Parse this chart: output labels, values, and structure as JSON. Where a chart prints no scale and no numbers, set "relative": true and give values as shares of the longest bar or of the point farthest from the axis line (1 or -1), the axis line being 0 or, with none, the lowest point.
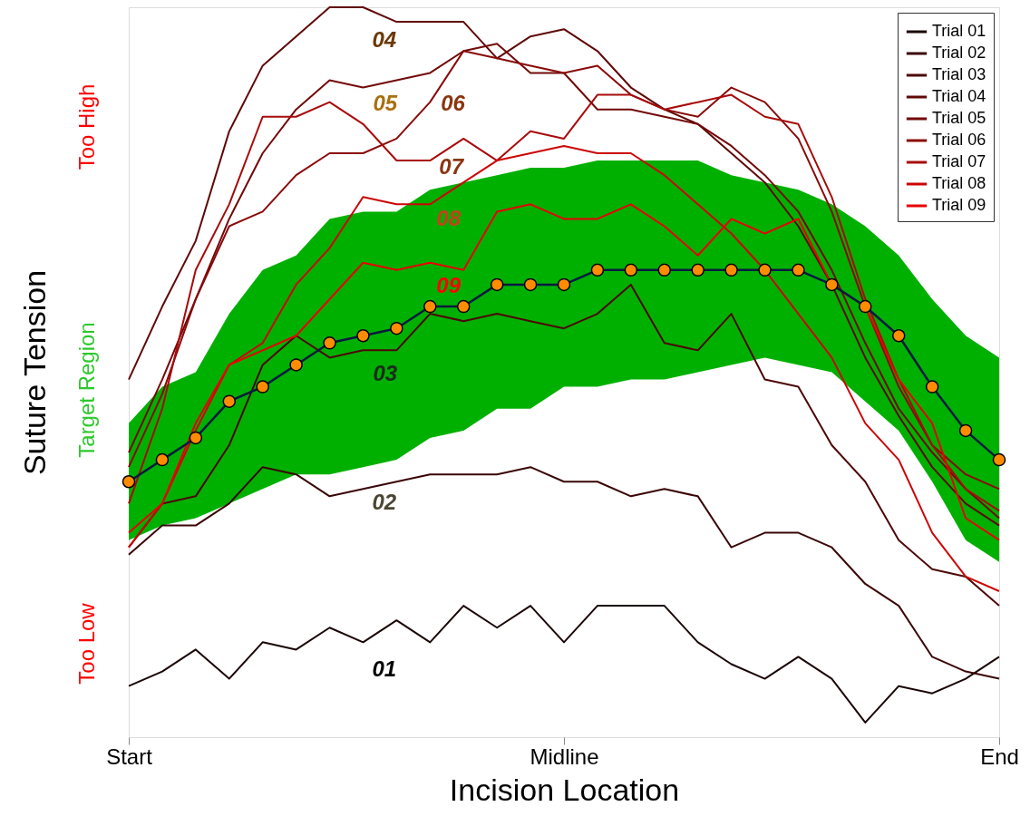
{
  "chart_data": {
    "type": "line",
    "xlabel": "Incision Location",
    "ylabel": "Suture Tension",
    "relative": true,
    "grid": false,
    "legend": "top right",
    "line_style": "solid",
    "categories": [
      "Start",
      null,
      null,
      null,
      null,
      null,
      null,
      null,
      null,
      null,
      null,
      null,
      null,
      "Midline",
      null,
      null,
      null,
      null,
      null,
      null,
      null,
      null,
      null,
      null,
      null,
      null,
      "End"
    ],
    "series": [
      {
        "name": "Trial 01",
        "color": "#1a0505",
        "values": [
          0.07,
          0.09,
          0.12,
          0.08,
          0.13,
          0.12,
          0.15,
          0.13,
          0.16,
          0.13,
          0.18,
          0.15,
          0.18,
          0.13,
          0.18,
          0.18,
          0.18,
          0.13,
          0.1,
          0.08,
          0.11,
          0.08,
          0.02,
          0.07,
          0.06,
          0.08,
          0.11
        ]
      },
      {
        "name": "Trial 02",
        "color": "#3a0606",
        "values": [
          0.25,
          0.29,
          0.29,
          0.32,
          0.37,
          0.36,
          0.33,
          0.34,
          0.35,
          0.36,
          0.36,
          0.36,
          0.37,
          0.35,
          0.35,
          0.33,
          0.34,
          0.33,
          0.26,
          0.28,
          0.28,
          0.26,
          0.21,
          0.18,
          0.11,
          0.09,
          0.08
        ]
      },
      {
        "name": "Trial 03",
        "color": "#4d0707",
        "values": [
          0.26,
          0.32,
          0.33,
          0.4,
          0.51,
          0.55,
          0.52,
          0.53,
          0.53,
          0.58,
          0.57,
          0.58,
          0.57,
          0.56,
          0.58,
          0.62,
          0.54,
          0.53,
          0.58,
          0.49,
          0.48,
          0.4,
          0.35,
          0.27,
          0.23,
          0.22,
          0.18
        ]
      },
      {
        "name": "Trial 04",
        "color": "#600808",
        "values": [
          0.49,
          0.59,
          0.68,
          0.83,
          0.92,
          0.96,
          1.0,
          1.0,
          0.98,
          0.98,
          0.98,
          0.93,
          0.96,
          0.97,
          0.94,
          0.89,
          0.86,
          0.84,
          0.8,
          0.76,
          0.7,
          0.62,
          0.52,
          0.44,
          0.37,
          0.32,
          0.29
        ]
      },
      {
        "name": "Trial 05",
        "color": "#730909",
        "values": [
          0.39,
          0.49,
          0.6,
          0.71,
          0.8,
          0.86,
          0.9,
          0.89,
          0.9,
          0.91,
          0.94,
          0.95,
          0.91,
          0.91,
          0.86,
          0.86,
          0.85,
          0.84,
          0.81,
          0.77,
          0.72,
          0.64,
          0.54,
          0.45,
          0.39,
          0.34,
          0.3
        ]
      },
      {
        "name": "Trial 06",
        "color": "#8a0a0a",
        "values": [
          0.37,
          0.47,
          0.6,
          0.7,
          0.72,
          0.77,
          0.8,
          0.8,
          0.82,
          0.87,
          0.94,
          0.93,
          0.92,
          0.91,
          0.92,
          0.88,
          0.86,
          0.85,
          0.89,
          0.87,
          0.82,
          0.72,
          0.59,
          0.48,
          0.4,
          0.36,
          0.34
        ]
      },
      {
        "name": "Trial 07",
        "color": "#a80a0a",
        "values": [
          0.32,
          0.45,
          0.64,
          0.73,
          0.85,
          0.85,
          0.87,
          0.84,
          0.79,
          0.79,
          0.82,
          0.79,
          0.83,
          0.82,
          0.88,
          0.88,
          0.86,
          0.87,
          0.88,
          0.85,
          0.84,
          0.74,
          0.6,
          0.49,
          0.4,
          0.34,
          0.31
        ]
      },
      {
        "name": "Trial 08",
        "color": "#cc0505",
        "values": [
          0.26,
          0.32,
          0.42,
          0.51,
          0.54,
          0.62,
          0.67,
          0.74,
          0.73,
          0.73,
          0.76,
          0.79,
          0.8,
          0.81,
          0.8,
          0.8,
          0.77,
          0.73,
          0.69,
          0.64,
          0.58,
          0.52,
          0.43,
          0.38,
          0.28,
          0.22,
          0.2
        ]
      },
      {
        "name": "Trial 09",
        "color": "#e80000",
        "values": [
          0.28,
          0.32,
          0.43,
          0.51,
          0.53,
          0.55,
          0.6,
          0.65,
          0.64,
          0.65,
          0.64,
          0.72,
          0.73,
          0.71,
          0.71,
          0.73,
          0.7,
          0.66,
          0.71,
          0.69,
          0.71,
          0.62,
          0.59,
          0.49,
          0.43,
          0.3,
          0.27
        ]
      },
      {
        "color": "#ff8c00",
        "marker": "circle",
        "values": [
          0.35,
          0.38,
          0.41,
          0.46,
          0.48,
          0.51,
          0.54,
          0.55,
          0.56,
          0.59,
          0.59,
          0.62,
          0.62,
          0.62,
          0.64,
          0.64,
          0.64,
          0.64,
          0.64,
          0.64,
          0.64,
          0.62,
          0.59,
          0.55,
          0.48,
          0.42,
          0.38
        ],
        "lower": [
          0.27,
          0.29,
          0.3,
          0.32,
          0.34,
          0.36,
          0.36,
          0.37,
          0.38,
          0.41,
          0.42,
          0.45,
          0.45,
          0.48,
          0.48,
          0.49,
          0.49,
          0.5,
          0.51,
          0.52,
          0.51,
          0.5,
          0.46,
          0.42,
          0.35,
          0.27,
          0.24
        ],
        "upper": [
          0.43,
          0.48,
          0.5,
          0.58,
          0.64,
          0.66,
          0.71,
          0.72,
          0.72,
          0.75,
          0.76,
          0.77,
          0.78,
          0.78,
          0.79,
          0.79,
          0.79,
          0.79,
          0.77,
          0.76,
          0.75,
          0.73,
          0.7,
          0.66,
          0.6,
          0.55,
          0.52
        ]
      }
    ],
    "annotations": [
      "01",
      "02",
      "03",
      "04",
      "05",
      "06",
      "07",
      "08",
      "09",
      "Too High",
      "Target Region",
      "Too Low"
    ]
  }
}
